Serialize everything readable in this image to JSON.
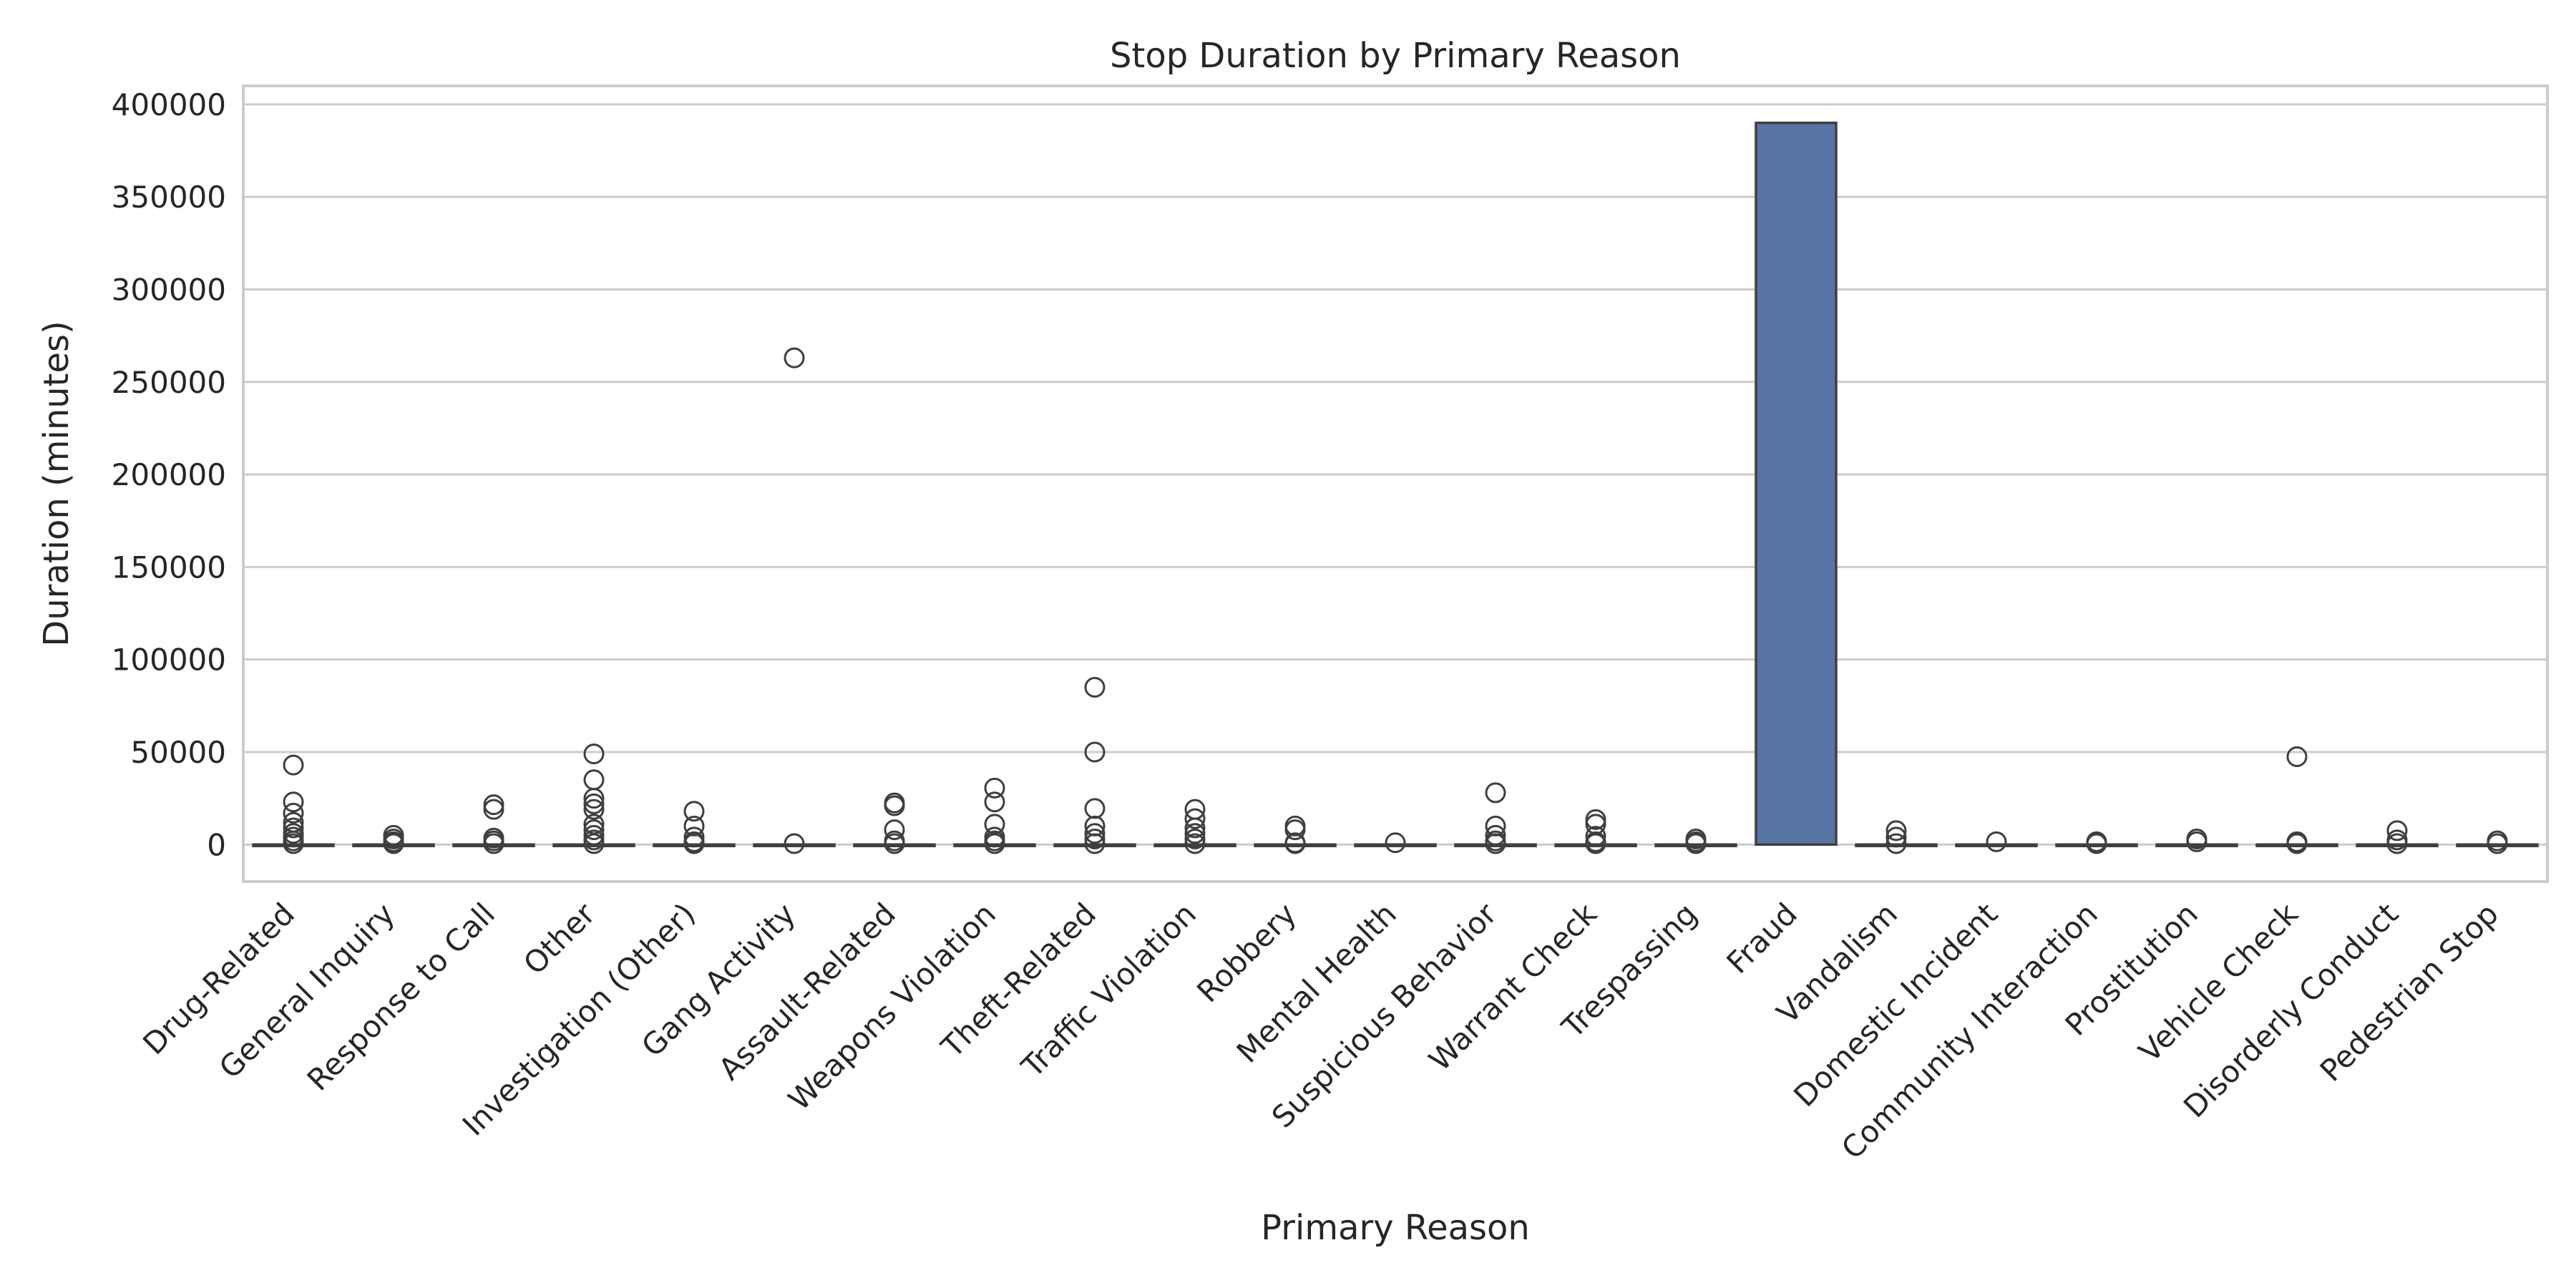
{
  "chart_data": {
    "type": "box",
    "title": "Stop Duration by Primary Reason",
    "xlabel": "Primary Reason",
    "ylabel": "Duration (minutes)",
    "ylim": [
      -20000,
      410000
    ],
    "yticks": [
      0,
      50000,
      100000,
      150000,
      200000,
      250000,
      300000,
      350000,
      400000
    ],
    "grid": "horizontal",
    "box_color": "#5874a4",
    "edge_color": "#3f3f3f",
    "categories": [
      "Drug-Related",
      "General Inquiry",
      "Response to Call",
      "Other",
      "Investigation (Other)",
      "Gang Activity",
      "Assault-Related",
      "Weapons Violation",
      "Theft-Related",
      "Traffic Violation",
      "Robbery",
      "Mental Health",
      "Suspicious Behavior",
      "Warrant Check",
      "Trespassing",
      "Fraud",
      "Vandalism",
      "Domestic Incident",
      "Community Interaction",
      "Prostitution",
      "Vehicle Check",
      "Disorderly Conduct",
      "Pedestrian Stop"
    ],
    "boxes": [
      {
        "q1": 0,
        "median": 0,
        "q3": 0,
        "whisker_low": 0,
        "whisker_high": 0,
        "outliers": [
          43000,
          23000,
          17000,
          12000,
          9000,
          6000,
          4000,
          2000,
          500
        ]
      },
      {
        "q1": 0,
        "median": 0,
        "q3": 0,
        "whisker_low": 0,
        "whisker_high": 0,
        "outliers": [
          5000,
          3000,
          1500,
          500
        ]
      },
      {
        "q1": 0,
        "median": 0,
        "q3": 0,
        "whisker_low": 0,
        "whisker_high": 0,
        "outliers": [
          21500,
          19000,
          3500,
          2000,
          500
        ]
      },
      {
        "q1": 0,
        "median": 0,
        "q3": 0,
        "whisker_low": 0,
        "whisker_high": 0,
        "outliers": [
          49000,
          35000,
          25000,
          22000,
          19000,
          11000,
          8000,
          5000,
          2500,
          500
        ]
      },
      {
        "q1": 0,
        "median": 0,
        "q3": 0,
        "whisker_low": 0,
        "whisker_high": 0,
        "outliers": [
          18000,
          10000,
          4000,
          1500,
          500
        ]
      },
      {
        "q1": 0,
        "median": 0,
        "q3": 0,
        "whisker_low": 0,
        "whisker_high": 0,
        "outliers": [
          263000,
          500
        ]
      },
      {
        "q1": 0,
        "median": 0,
        "q3": 0,
        "whisker_low": 0,
        "whisker_high": 0,
        "outliers": [
          22500,
          21000,
          8000,
          2000,
          500
        ]
      },
      {
        "q1": 0,
        "median": 0,
        "q3": 0,
        "whisker_low": 0,
        "whisker_high": 0,
        "outliers": [
          30500,
          23000,
          11000,
          4000,
          2000,
          500
        ]
      },
      {
        "q1": 0,
        "median": 0,
        "q3": 0,
        "whisker_low": 0,
        "whisker_high": 0,
        "outliers": [
          85000,
          50000,
          19500,
          10000,
          6000,
          3000,
          500
        ]
      },
      {
        "q1": 0,
        "median": 0,
        "q3": 0,
        "whisker_low": 0,
        "whisker_high": 0,
        "outliers": [
          19000,
          14000,
          9000,
          6000,
          3000,
          500
        ]
      },
      {
        "q1": 0,
        "median": 0,
        "q3": 0,
        "whisker_low": 0,
        "whisker_high": 0,
        "outliers": [
          10000,
          8000,
          1000,
          500
        ]
      },
      {
        "q1": 0,
        "median": 0,
        "q3": 0,
        "whisker_low": 0,
        "whisker_high": 0,
        "outliers": [
          1000
        ]
      },
      {
        "q1": 0,
        "median": 0,
        "q3": 0,
        "whisker_low": 0,
        "whisker_high": 0,
        "outliers": [
          28000,
          10000,
          5000,
          2000,
          500
        ]
      },
      {
        "q1": 0,
        "median": 0,
        "q3": 0,
        "whisker_low": 0,
        "whisker_high": 0,
        "outliers": [
          13500,
          11000,
          4500,
          1500,
          500
        ]
      },
      {
        "q1": 0,
        "median": 0,
        "q3": 0,
        "whisker_low": 0,
        "whisker_high": 0,
        "outliers": [
          3000,
          1500,
          500
        ]
      },
      {
        "q1": 0,
        "median": 0,
        "q3": 390000,
        "whisker_low": 0,
        "whisker_high": 390000,
        "outliers": []
      },
      {
        "q1": 0,
        "median": 0,
        "q3": 0,
        "whisker_low": 0,
        "whisker_high": 0,
        "outliers": [
          7500,
          4000,
          500
        ]
      },
      {
        "q1": 0,
        "median": 0,
        "q3": 0,
        "whisker_low": 0,
        "whisker_high": 0,
        "outliers": [
          1500
        ]
      },
      {
        "q1": 0,
        "median": 0,
        "q3": 0,
        "whisker_low": 0,
        "whisker_high": 0,
        "outliers": [
          1500,
          500
        ]
      },
      {
        "q1": 0,
        "median": 0,
        "q3": 0,
        "whisker_low": 0,
        "whisker_high": 0,
        "outliers": [
          3000,
          1500
        ]
      },
      {
        "q1": 0,
        "median": 0,
        "q3": 0,
        "whisker_low": 0,
        "whisker_high": 0,
        "outliers": [
          47500,
          1500,
          500
        ]
      },
      {
        "q1": 0,
        "median": 0,
        "q3": 0,
        "whisker_low": 0,
        "whisker_high": 0,
        "outliers": [
          7500,
          2500,
          500
        ]
      },
      {
        "q1": 0,
        "median": 0,
        "q3": 0,
        "whisker_low": 0,
        "whisker_high": 0,
        "outliers": [
          2000,
          500
        ]
      }
    ]
  }
}
